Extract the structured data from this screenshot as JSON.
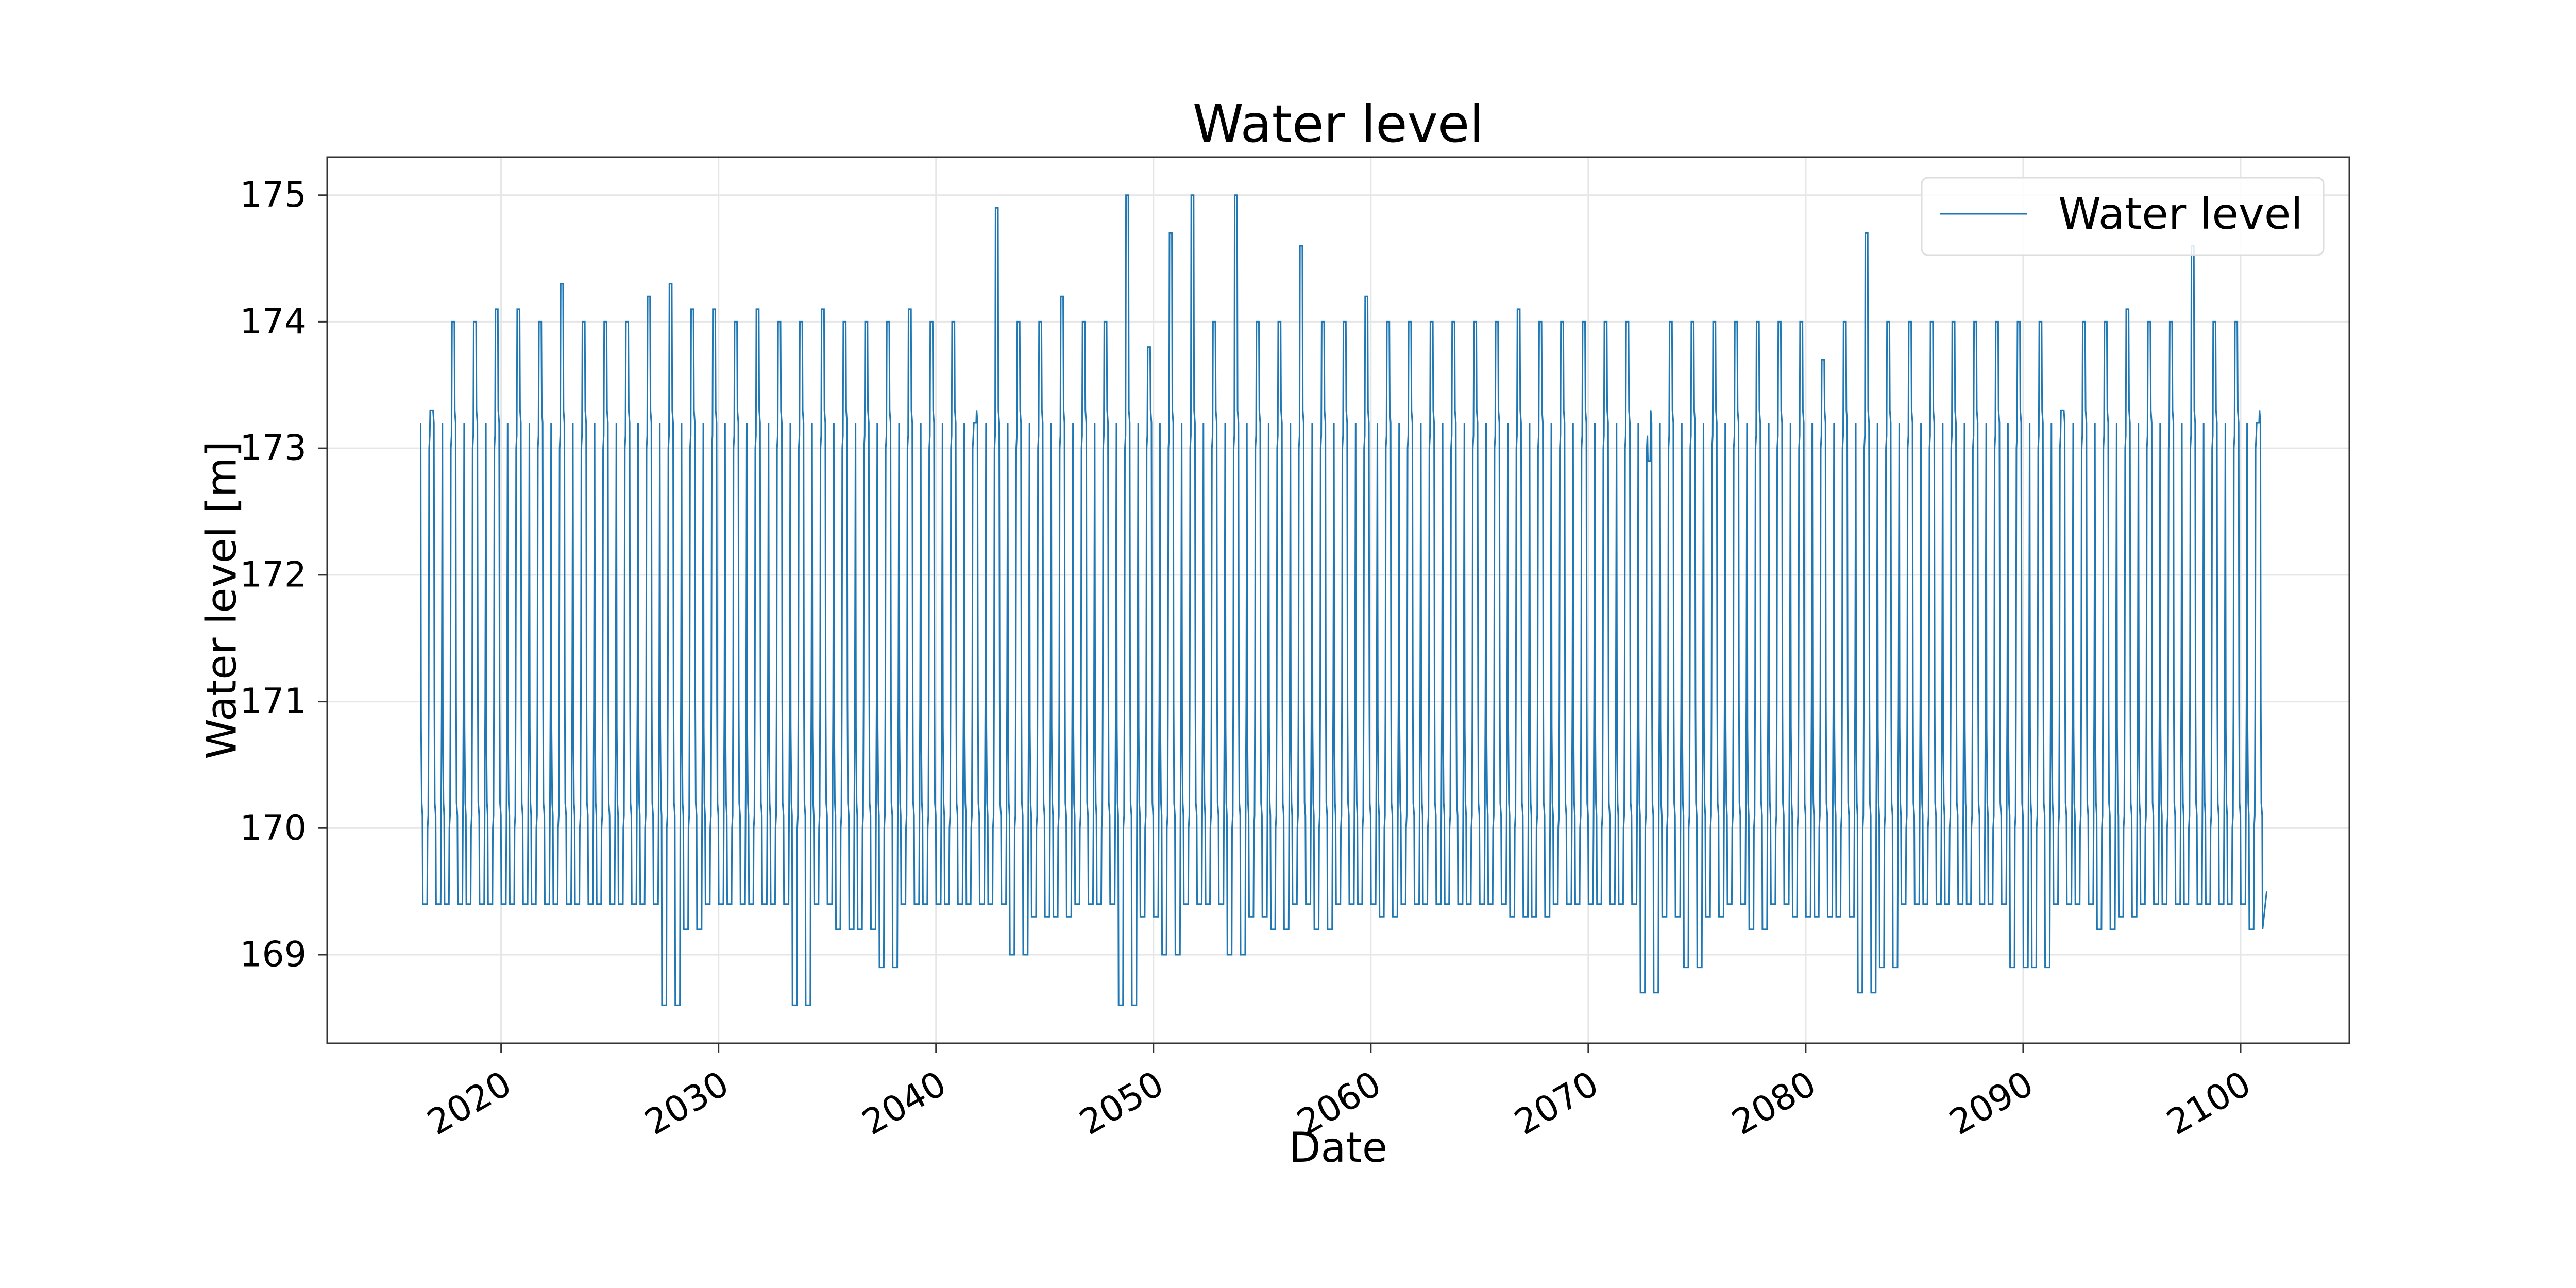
{
  "chart_data": {
    "type": "line",
    "title": "Water level",
    "xlabel": "Date",
    "ylabel": "Water level [m]",
    "xlim": [
      2012,
      2105
    ],
    "ylim": [
      168.3,
      175.3
    ],
    "x_ticks": [
      2020,
      2030,
      2040,
      2050,
      2060,
      2070,
      2080,
      2090,
      2100
    ],
    "x_tick_labels": [
      "2020",
      "2030",
      "2040",
      "2050",
      "2060",
      "2070",
      "2080",
      "2090",
      "2100"
    ],
    "y_ticks": [
      169,
      170,
      171,
      172,
      173,
      174,
      175
    ],
    "y_tick_labels": [
      "169",
      "170",
      "171",
      "172",
      "173",
      "174",
      "175"
    ],
    "grid": true,
    "legend_position": "top-right",
    "color": "#1f77b4",
    "series": [
      {
        "name": "Water level",
        "x_range": [
          2016.3,
          2101.2
        ],
        "pattern": "seasonal annual cycle: plateau near 174.0 m, drop through 173.0-171.0 to trough near 169.4 m, rise back",
        "annual_highs": [
          173.3,
          174.0,
          174.0,
          174.1,
          174.1,
          174.0,
          174.3,
          174.0,
          174.0,
          174.0,
          174.2,
          174.3,
          174.1,
          174.1,
          174.0,
          174.1,
          174.0,
          174.0,
          174.1,
          174.0,
          174.0,
          174.0,
          174.1,
          174.0,
          174.0,
          173.2,
          174.9,
          174.0,
          174.0,
          174.2,
          174.0,
          174.0,
          175.0,
          173.8,
          174.7,
          175.0,
          174.0,
          175.0,
          174.0,
          174.0,
          174.6,
          174.0,
          174.0,
          174.2,
          174.0,
          174.0,
          174.0,
          174.0,
          174.0,
          174.0,
          174.1,
          174.0,
          174.0,
          174.0,
          174.0,
          174.0,
          172.9,
          174.0,
          174.0,
          174.0,
          174.0,
          174.0,
          174.0,
          174.0,
          173.7,
          174.0,
          174.7,
          174.0,
          174.0,
          174.0,
          174.0,
          174.0,
          174.0,
          174.0,
          174.0,
          173.3,
          174.0,
          174.0,
          174.1,
          174.0,
          174.0,
          174.6,
          174.0,
          174.0,
          173.2
        ],
        "annual_lows": [
          169.4,
          169.4,
          169.4,
          169.4,
          169.4,
          169.4,
          169.4,
          169.4,
          169.4,
          169.4,
          169.4,
          168.6,
          169.2,
          169.4,
          169.4,
          169.4,
          169.4,
          168.6,
          169.4,
          169.2,
          169.2,
          168.9,
          169.4,
          169.4,
          169.4,
          169.4,
          169.4,
          169.0,
          169.3,
          169.3,
          169.4,
          169.4,
          168.6,
          169.3,
          169.0,
          169.4,
          169.4,
          169.0,
          169.3,
          169.2,
          169.4,
          169.2,
          169.4,
          169.4,
          169.3,
          169.4,
          169.4,
          169.4,
          169.4,
          169.4,
          169.3,
          169.3,
          169.4,
          169.4,
          169.4,
          169.4,
          168.7,
          169.3,
          168.9,
          169.3,
          169.4,
          169.2,
          169.4,
          169.3,
          169.3,
          169.3,
          168.7,
          168.9,
          169.4,
          169.4,
          169.4,
          169.4,
          169.4,
          168.9,
          168.9,
          169.4,
          169.4,
          169.2,
          169.3,
          169.4,
          169.4,
          169.4,
          169.4,
          169.4,
          169.2
        ]
      }
    ]
  }
}
